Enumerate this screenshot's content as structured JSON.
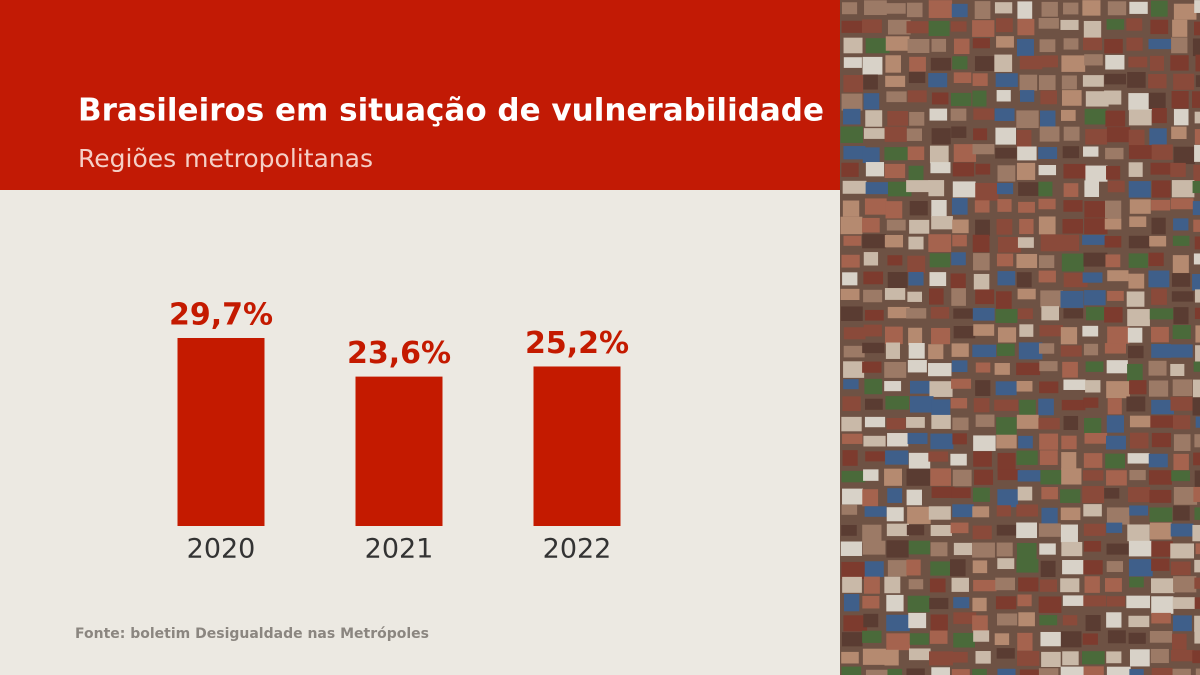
{
  "chart_data": {
    "type": "bar",
    "title": "Brasileiros em situação de vulnerabilidade",
    "subtitle": "Regiões metropolitanas",
    "categories": [
      "2020",
      "2021",
      "2022"
    ],
    "values": [
      29.7,
      23.6,
      25.2
    ],
    "value_labels": [
      "29,7%",
      "23,6%",
      "25,2%"
    ],
    "color": "#c41a00",
    "source": "Fonte: boletim Desigualdade nas Metrópoles"
  }
}
